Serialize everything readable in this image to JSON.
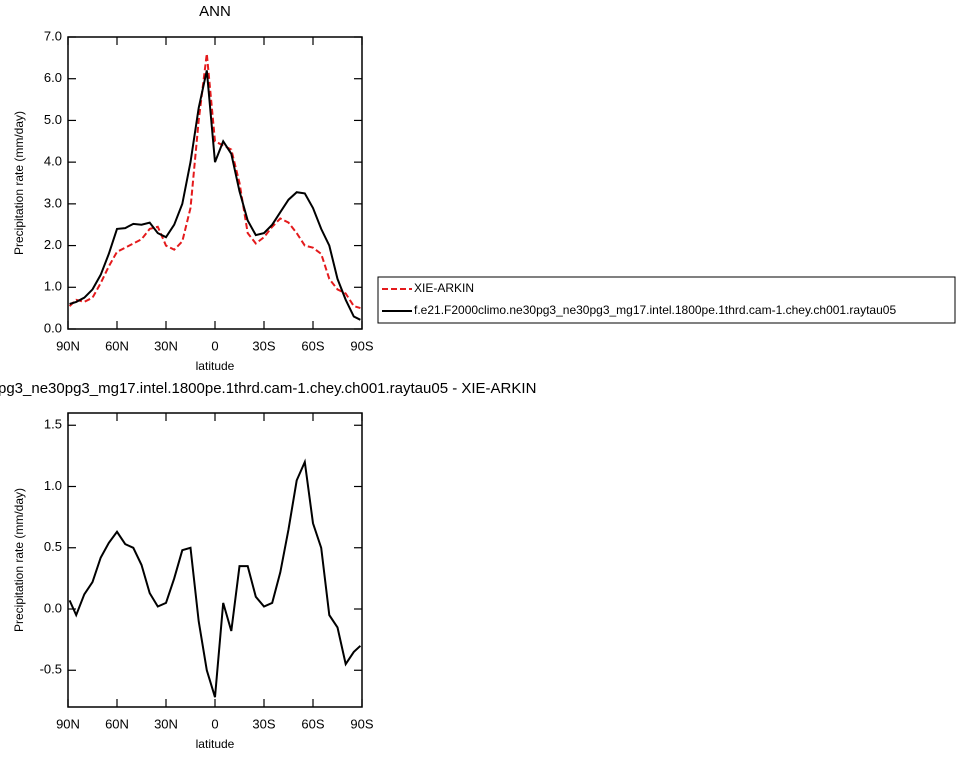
{
  "chart_data": [
    {
      "type": "line",
      "title": "ANN",
      "xlabel": "latitude",
      "ylabel": "Precipitation rate (mm/day)",
      "x": [
        89,
        85,
        80,
        75,
        70,
        65,
        60,
        55,
        50,
        45,
        40,
        35,
        30,
        25,
        20,
        15,
        10,
        5,
        0,
        -5,
        -10,
        -15,
        -20,
        -25,
        -30,
        -35,
        -40,
        -45,
        -50,
        -55,
        -60,
        -65,
        -70,
        -75,
        -80,
        -85,
        -89
      ],
      "series": [
        {
          "name": "XIE-ARKIN",
          "color": "#e41a1c",
          "style": "dashed",
          "values": [
            0.55,
            0.7,
            0.65,
            0.75,
            1.1,
            1.5,
            1.85,
            1.95,
            2.05,
            2.15,
            2.4,
            2.45,
            2.0,
            1.9,
            2.1,
            2.9,
            5.0,
            6.6,
            4.5,
            4.4,
            4.3,
            3.5,
            2.3,
            2.05,
            2.2,
            2.45,
            2.65,
            2.55,
            2.3,
            2.0,
            1.95,
            1.8,
            1.2,
            0.95,
            0.85,
            0.55,
            0.5
          ]
        },
        {
          "name": "f.e21.F2000climo.ne30pg3_ne30pg3_mg17.intel.1800pe.1thrd.cam-1.chey.ch001.raytau05",
          "color": "#000000",
          "style": "solid",
          "values": [
            0.6,
            0.65,
            0.75,
            0.95,
            1.3,
            1.8,
            2.4,
            2.42,
            2.52,
            2.5,
            2.55,
            2.3,
            2.2,
            2.5,
            3.0,
            4.0,
            5.3,
            6.2,
            4.0,
            4.5,
            4.2,
            3.3,
            2.6,
            2.25,
            2.3,
            2.5,
            2.8,
            3.1,
            3.28,
            3.25,
            2.9,
            2.4,
            2.0,
            1.2,
            0.7,
            0.3,
            0.22
          ]
        }
      ],
      "xlim": [
        90,
        -90
      ],
      "xticks": [
        {
          "value": 90,
          "label": "90N"
        },
        {
          "value": 60,
          "label": "60N"
        },
        {
          "value": 30,
          "label": "30N"
        },
        0,
        {
          "value": -30,
          "label": "30S"
        },
        {
          "value": -60,
          "label": "60S"
        },
        {
          "value": -90,
          "label": "90S"
        }
      ],
      "ylim": [
        0,
        7
      ],
      "yticks": [
        {
          "value": 0,
          "label": "0.0"
        },
        {
          "value": 1,
          "label": "1.0"
        },
        {
          "value": 2,
          "label": "2.0"
        },
        {
          "value": 3,
          "label": "3.0"
        },
        {
          "value": 4,
          "label": "4.0"
        },
        {
          "value": 5,
          "label": "5.0"
        },
        {
          "value": 6,
          "label": "6.0"
        },
        {
          "value": 7,
          "label": "7.0"
        }
      ],
      "legend": "right"
    },
    {
      "type": "line",
      "title": "pg3_ne30pg3_mg17.intel.1800pe.1thrd.cam-1.chey.ch001.raytau05 - XIE-ARKIN",
      "xlabel": "latitude",
      "ylabel": "Precipitation rate (mm/day)",
      "x": [
        89,
        85,
        80,
        75,
        70,
        65,
        60,
        55,
        50,
        45,
        40,
        35,
        30,
        25,
        20,
        15,
        10,
        5,
        0,
        -5,
        -10,
        -15,
        -20,
        -25,
        -30,
        -35,
        -40,
        -45,
        -50,
        -55,
        -60,
        -65,
        -70,
        -75,
        -80,
        -85,
        -89
      ],
      "series": [
        {
          "color": "#000000",
          "style": "solid",
          "values": [
            0.07,
            -0.05,
            0.12,
            0.22,
            0.42,
            0.54,
            0.63,
            0.53,
            0.5,
            0.36,
            0.13,
            0.02,
            0.05,
            0.25,
            0.48,
            0.5,
            -0.1,
            -0.5,
            -0.72,
            0.05,
            -0.18,
            0.35,
            0.35,
            0.1,
            0.02,
            0.05,
            0.3,
            0.65,
            1.05,
            1.2,
            0.7,
            0.5,
            -0.05,
            -0.15,
            -0.45,
            -0.35,
            -0.3
          ]
        }
      ],
      "xlim": [
        90,
        -90
      ],
      "xticks": [
        {
          "value": 90,
          "label": "90N"
        },
        {
          "value": 60,
          "label": "60N"
        },
        {
          "value": 30,
          "label": "30N"
        },
        0,
        {
          "value": -30,
          "label": "30S"
        },
        {
          "value": -60,
          "label": "60S"
        },
        {
          "value": -90,
          "label": "90S"
        }
      ],
      "ylim": [
        -0.8,
        1.6
      ],
      "yticks": [
        {
          "value": -0.5,
          "label": "-0.5"
        },
        {
          "value": 0,
          "label": "0.0"
        },
        {
          "value": 0.5,
          "label": "0.5"
        },
        {
          "value": 1,
          "label": "1.0"
        },
        {
          "value": 1.5,
          "label": "1.5"
        }
      ]
    }
  ]
}
